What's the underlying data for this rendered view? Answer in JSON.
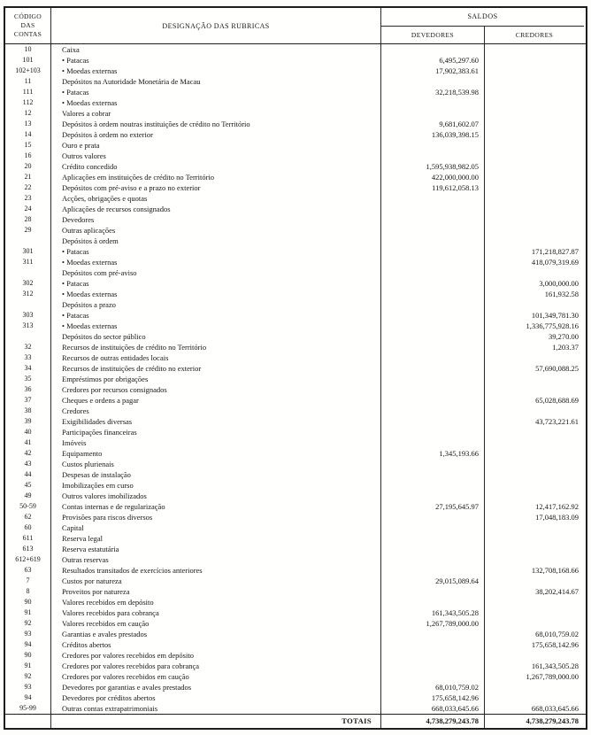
{
  "table": {
    "header": {
      "codigo_lines": [
        "CÓDIGO",
        "DAS",
        "CONTAS"
      ],
      "designacao": "DESIGNAÇÃO DAS RUBRICAS",
      "saldos": "SALDOS",
      "devedores": "DEVEDORES",
      "credores": "CREDORES"
    },
    "rows": [
      {
        "code": "10",
        "label": "Caixa",
        "dev": "",
        "cred": ""
      },
      {
        "code": "101",
        "label": "• Patacas",
        "dev": "6,495,297.60",
        "cred": ""
      },
      {
        "code": "102+103",
        "label": "• Moedas externas",
        "dev": "17,902,383.61",
        "cred": ""
      },
      {
        "code": "11",
        "label": "Depósitos na Autoridade Monetária de Macau",
        "dev": "",
        "cred": ""
      },
      {
        "code": "111",
        "label": "• Patacas",
        "dev": "32,218,539.98",
        "cred": ""
      },
      {
        "code": "112",
        "label": "• Moedas externas",
        "dev": "",
        "cred": ""
      },
      {
        "code": "12",
        "label": "Valores a cobrar",
        "dev": "",
        "cred": ""
      },
      {
        "code": "13",
        "label": "Depósitos à ordem noutras instituições de crédito no Território",
        "dev": "9,681,602.07",
        "cred": ""
      },
      {
        "code": "14",
        "label": "Depósitos à ordem no exterior",
        "dev": "136,039,398.15",
        "cred": ""
      },
      {
        "code": "15",
        "label": "Ouro e prata",
        "dev": "",
        "cred": ""
      },
      {
        "code": "16",
        "label": "Outros valores",
        "dev": "",
        "cred": ""
      },
      {
        "code": "20",
        "label": "Crédito concedido",
        "dev": "1,595,938,982.05",
        "cred": ""
      },
      {
        "code": "21",
        "label": "Aplicações em instituições de crédito no Território",
        "dev": "422,000,000.00",
        "cred": ""
      },
      {
        "code": "22",
        "label": "Depósitos com pré-aviso e a prazo no exterior",
        "dev": "119,612,058.13",
        "cred": ""
      },
      {
        "code": "23",
        "label": "Acções, obrigações e quotas",
        "dev": "",
        "cred": ""
      },
      {
        "code": "24",
        "label": "Aplicações de recursos consignados",
        "dev": "",
        "cred": ""
      },
      {
        "code": "28",
        "label": "Devedores",
        "dev": "",
        "cred": ""
      },
      {
        "code": "29",
        "label": "Outras aplicações",
        "dev": "",
        "cred": ""
      },
      {
        "code": "",
        "label": "Depósitos à ordem",
        "dev": "",
        "cred": ""
      },
      {
        "code": "301",
        "label": "• Patacas",
        "dev": "",
        "cred": "171,218,827.87"
      },
      {
        "code": "311",
        "label": "• Moedas externas",
        "dev": "",
        "cred": "418,079,319.69"
      },
      {
        "code": "",
        "label": "Depósitos com pré-aviso",
        "dev": "",
        "cred": ""
      },
      {
        "code": "302",
        "label": "• Patacas",
        "dev": "",
        "cred": "3,000,000.00"
      },
      {
        "code": "312",
        "label": "• Moedas externas",
        "dev": "",
        "cred": "161,932.58"
      },
      {
        "code": "",
        "label": "Depósitos a prazo",
        "dev": "",
        "cred": ""
      },
      {
        "code": "303",
        "label": "• Patacas",
        "dev": "",
        "cred": "101,349,781.30"
      },
      {
        "code": "313",
        "label": "• Moedas externas",
        "dev": "",
        "cred": "1,336,775,928.16"
      },
      {
        "code": "",
        "label": "Depósitos do sector público",
        "dev": "",
        "cred": "39,270.00"
      },
      {
        "code": "32",
        "label": "Recursos de instituições de crédito no Território",
        "dev": "",
        "cred": "1,203.37"
      },
      {
        "code": "33",
        "label": "Recursos de outras entidades locais",
        "dev": "",
        "cred": ""
      },
      {
        "code": "34",
        "label": "Recursos de instituições de crédito no exterior",
        "dev": "",
        "cred": "57,690,088.25"
      },
      {
        "code": "35",
        "label": "Empréstimos por obrigações",
        "dev": "",
        "cred": ""
      },
      {
        "code": "36",
        "label": "Credores por recursos consignados",
        "dev": "",
        "cred": ""
      },
      {
        "code": "37",
        "label": "Cheques e ordens a pagar",
        "dev": "",
        "cred": "65,028,688.69"
      },
      {
        "code": "38",
        "label": "Credores",
        "dev": "",
        "cred": ""
      },
      {
        "code": "39",
        "label": "Exigibilidades diversas",
        "dev": "",
        "cred": "43,723,221.61"
      },
      {
        "code": "40",
        "label": "Participações financeiras",
        "dev": "",
        "cred": ""
      },
      {
        "code": "41",
        "label": "Imóveis",
        "dev": "",
        "cred": ""
      },
      {
        "code": "42",
        "label": "Equipamento",
        "dev": "1,345,193.66",
        "cred": ""
      },
      {
        "code": "43",
        "label": "Custos plurienais",
        "dev": "",
        "cred": ""
      },
      {
        "code": "44",
        "label": "Despesas de instalação",
        "dev": "",
        "cred": ""
      },
      {
        "code": "45",
        "label": "Imobilizações em curso",
        "dev": "",
        "cred": ""
      },
      {
        "code": "49",
        "label": "Outros valores imobilizados",
        "dev": "",
        "cred": ""
      },
      {
        "code": "50-59",
        "label": "Contas internas e de regularização",
        "dev": "27,195,645.97",
        "cred": "12,417,162.92"
      },
      {
        "code": "62",
        "label": "Provisões para riscos diversos",
        "dev": "",
        "cred": "17,048,183.09"
      },
      {
        "code": "60",
        "label": "Capital",
        "dev": "",
        "cred": ""
      },
      {
        "code": "611",
        "label": "Reserva legal",
        "dev": "",
        "cred": ""
      },
      {
        "code": "613",
        "label": "Reserva estatutária",
        "dev": "",
        "cred": ""
      },
      {
        "code": "612+619",
        "label": "Outras reservas",
        "dev": "",
        "cred": ""
      },
      {
        "code": "63",
        "label": "Resultados transitados de exercícios anteriores",
        "dev": "",
        "cred": "132,708,168.66"
      },
      {
        "code": "7",
        "label": "Custos por natureza",
        "dev": "29,015,089.64",
        "cred": ""
      },
      {
        "code": "8",
        "label": "Proveitos por natureza",
        "dev": "",
        "cred": "38,202,414.67"
      },
      {
        "code": "90",
        "label": "Valores recebidos em depósito",
        "dev": "",
        "cred": ""
      },
      {
        "code": "91",
        "label": "Valores recebidos para cobrança",
        "dev": "161,343,505.28",
        "cred": ""
      },
      {
        "code": "92",
        "label": "Valores recebidos em caução",
        "dev": "1,267,789,000.00",
        "cred": ""
      },
      {
        "code": "93",
        "label": "Garantias e avales prestados",
        "dev": "",
        "cred": "68,010,759.02"
      },
      {
        "code": "94",
        "label": "Créditos abertos",
        "dev": "",
        "cred": "175,658,142.96"
      },
      {
        "code": "90",
        "label": "Credores por valores recebidos em depósito",
        "dev": "",
        "cred": ""
      },
      {
        "code": "91",
        "label": "Credores por valores recebidos para cobrança",
        "dev": "",
        "cred": "161,343,505.28"
      },
      {
        "code": "92",
        "label": "Credores por valores recebidos em caução",
        "dev": "",
        "cred": "1,267,789,000.00"
      },
      {
        "code": "93",
        "label": "Devedores por garantias e avales prestados",
        "dev": "68,010,759.02",
        "cred": ""
      },
      {
        "code": "94",
        "label": "Devedores por créditos abertos",
        "dev": "175,658,142.96",
        "cred": ""
      },
      {
        "code": "95-99",
        "label": "Outras contas extrapatrimoniais",
        "dev": "668,033,645.66",
        "cred": "668,033,645.66"
      }
    ],
    "totals": {
      "label": "TOTAIS",
      "dev": "4,738,279,243.78",
      "cred": "4,738,279,243.78"
    }
  }
}
